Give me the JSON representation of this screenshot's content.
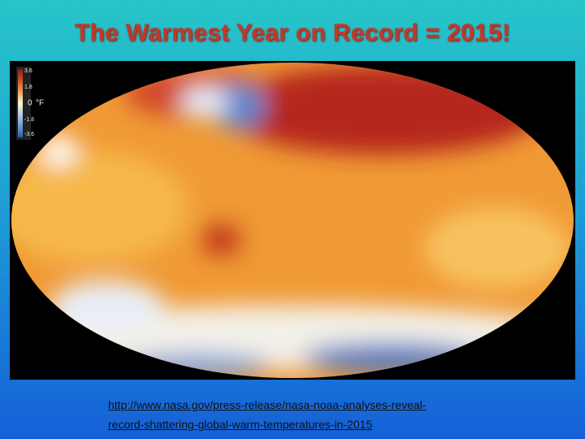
{
  "header": {
    "title": "The Warmest Year on Record = 2015!"
  },
  "map": {
    "legend": {
      "ticks": [
        "3.6",
        "1.8",
        "0",
        "-1.8",
        "-3.6"
      ],
      "unit": "°F"
    }
  },
  "footer": {
    "link_lines": [
      "http://www.nasa.gov/press-release/nasa-noaa-analyses-reveal-",
      "record-shattering-global-warm-temperatures-in-2015"
    ]
  }
}
